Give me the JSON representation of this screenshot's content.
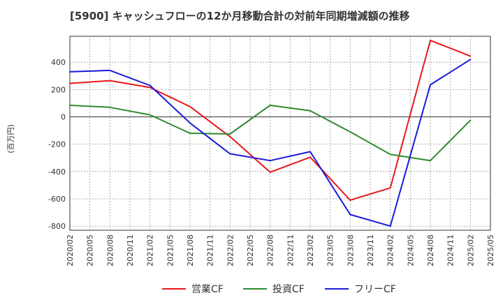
{
  "chart_data": {
    "type": "line",
    "title": "[5900]  キャッシュフローの12か月移動合計の対前年同期増減額の推移",
    "ylabel": "(百万円)",
    "xlabel": "",
    "ylim": [
      -830,
      590
    ],
    "yticks": [
      400,
      200,
      0,
      -200,
      -400,
      -600,
      -800
    ],
    "x": [
      "2020/02",
      "2020/05",
      "2020/08",
      "2020/11",
      "2021/02",
      "2021/05",
      "2021/08",
      "2021/11",
      "2022/02",
      "2022/05",
      "2022/08",
      "2022/11",
      "2023/02",
      "2023/05",
      "2023/08",
      "2023/11",
      "2024/02",
      "2024/05",
      "2024/08",
      "2024/11",
      "2025/02",
      "2025/05"
    ],
    "series": [
      {
        "name": "営業CF",
        "color": "#e8191b",
        "x": [
          "2020/02",
          "2020/08",
          "2021/02",
          "2021/08",
          "2022/02",
          "2022/08",
          "2023/02",
          "2023/08",
          "2024/02",
          "2024/08",
          "2025/02"
        ],
        "values": [
          245,
          265,
          215,
          75,
          -145,
          -405,
          -295,
          -610,
          -520,
          560,
          445
        ]
      },
      {
        "name": "投資CF",
        "color": "#2e8b2e",
        "x": [
          "2020/02",
          "2020/08",
          "2021/02",
          "2021/08",
          "2022/02",
          "2022/08",
          "2023/02",
          "2023/08",
          "2024/02",
          "2024/08",
          "2025/02"
        ],
        "values": [
          85,
          70,
          15,
          -120,
          -125,
          85,
          45,
          -110,
          -275,
          -320,
          -25
        ]
      },
      {
        "name": "フリーCF",
        "color": "#1a1adb",
        "x": [
          "2020/02",
          "2020/08",
          "2021/02",
          "2021/08",
          "2022/02",
          "2022/08",
          "2023/02",
          "2023/08",
          "2024/02",
          "2024/08",
          "2025/02"
        ],
        "values": [
          330,
          340,
          230,
          -45,
          -270,
          -320,
          -255,
          -715,
          -800,
          235,
          420
        ]
      }
    ],
    "legend_position": "bottom",
    "grid": true
  }
}
